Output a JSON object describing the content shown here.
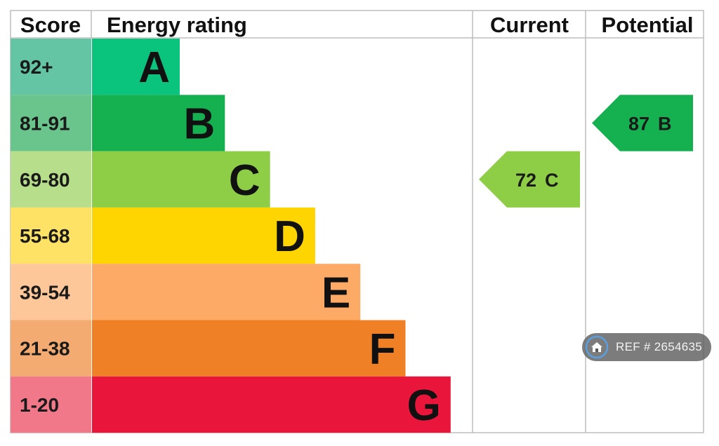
{
  "chart_data": {
    "type": "bar",
    "headers": {
      "score": "Score",
      "energy_rating": "Energy rating",
      "current": "Current",
      "potential": "Potential"
    },
    "bands": [
      {
        "score": "92+",
        "letter": "A",
        "color": "#0ac47e",
        "score_color": "#63c5a3"
      },
      {
        "score": "81-91",
        "letter": "B",
        "color": "#15b04f",
        "score_color": "#6ac58c"
      },
      {
        "score": "69-80",
        "letter": "C",
        "color": "#8dce46",
        "score_color": "#b7de8a"
      },
      {
        "score": "55-68",
        "letter": "D",
        "color": "#ffd500",
        "score_color": "#fee266"
      },
      {
        "score": "39-54",
        "letter": "E",
        "color": "#fcaa65",
        "score_color": "#fdc79a"
      },
      {
        "score": "21-38",
        "letter": "F",
        "color": "#ef8025",
        "score_color": "#f4ab71"
      },
      {
        "score": "1-20",
        "letter": "G",
        "color": "#e9153b",
        "score_color": "#f07888"
      }
    ],
    "current": {
      "value": 72,
      "letter": "C",
      "color": "#8dce46"
    },
    "potential": {
      "value": 87,
      "letter": "B",
      "color": "#15b04f"
    }
  },
  "badge": {
    "icon": "home-icon",
    "label": "REF # 2654635"
  }
}
